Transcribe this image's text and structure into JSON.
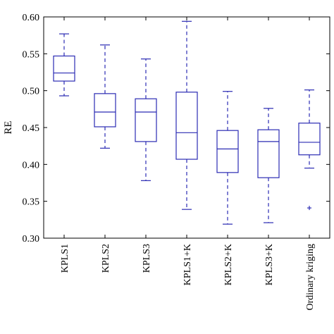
{
  "chart_data": {
    "type": "box",
    "ylabel": "RE",
    "xlabel": "",
    "ylim": [
      0.3,
      0.6
    ],
    "yticks": [
      "0.30",
      "0.35",
      "0.40",
      "0.45",
      "0.50",
      "0.55",
      "0.60"
    ],
    "categories": [
      "KPLS1",
      "KPLS2",
      "KPLS3",
      "KPLS1+K",
      "KPLS2+K",
      "KPLS3+K",
      "Ordinary kriging"
    ],
    "boxes": [
      {
        "whisker_low": 0.493,
        "q1": 0.513,
        "median": 0.524,
        "q3": 0.547,
        "whisker_high": 0.577,
        "outliers": []
      },
      {
        "whisker_low": 0.422,
        "q1": 0.451,
        "median": 0.471,
        "q3": 0.496,
        "whisker_high": 0.562,
        "outliers": []
      },
      {
        "whisker_low": 0.378,
        "q1": 0.431,
        "median": 0.471,
        "q3": 0.489,
        "whisker_high": 0.543,
        "outliers": []
      },
      {
        "whisker_low": 0.339,
        "q1": 0.407,
        "median": 0.443,
        "q3": 0.498,
        "whisker_high": 0.594,
        "outliers": []
      },
      {
        "whisker_low": 0.319,
        "q1": 0.389,
        "median": 0.421,
        "q3": 0.446,
        "whisker_high": 0.499,
        "outliers": []
      },
      {
        "whisker_low": 0.321,
        "q1": 0.382,
        "median": 0.431,
        "q3": 0.447,
        "whisker_high": 0.476,
        "outliers": []
      },
      {
        "whisker_low": 0.395,
        "q1": 0.413,
        "median": 0.43,
        "q3": 0.456,
        "whisker_high": 0.501,
        "outliers": [
          0.341
        ]
      }
    ],
    "colors": {
      "box": "#2b2bb3",
      "axis": "#000000"
    },
    "grid": false
  }
}
